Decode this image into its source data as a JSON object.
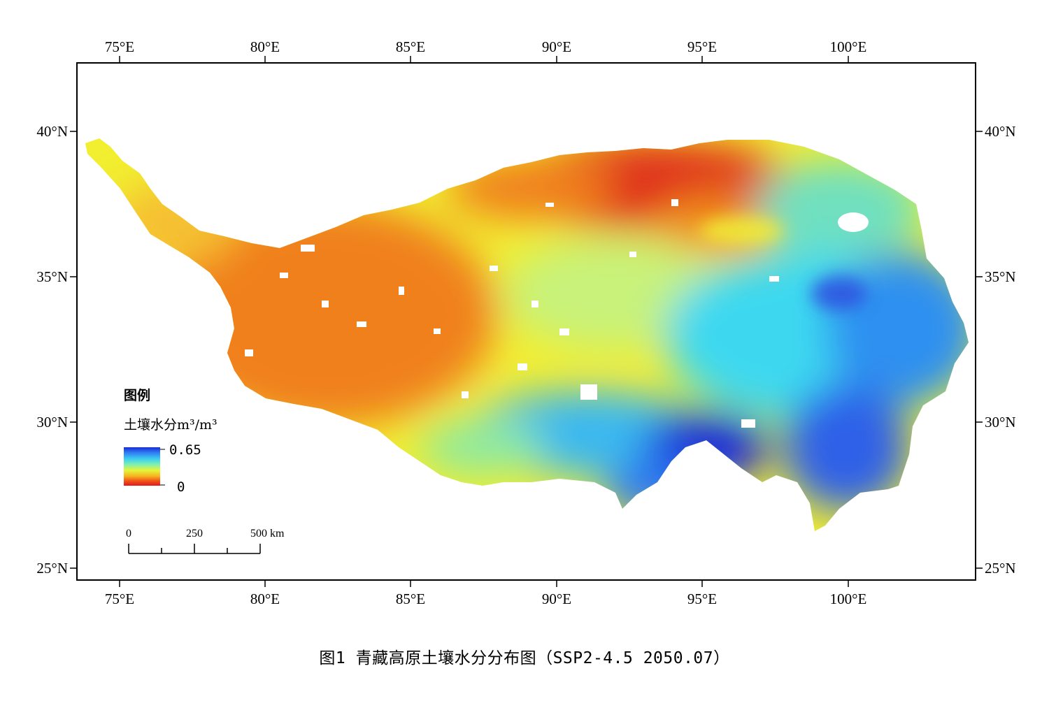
{
  "map": {
    "lon_ticks": [
      "75°E",
      "80°E",
      "85°E",
      "90°E",
      "95°E",
      "100°E"
    ],
    "lat_ticks": [
      "40°N",
      "35°N",
      "30°N",
      "25°N"
    ],
    "legend": {
      "title": "图例",
      "variable_label": "土壤水分m³/m³",
      "max_label": "0.65",
      "min_label": "0",
      "ramp_colors": [
        "#1a2cd6",
        "#2f7cf2",
        "#3ccdf0",
        "#7ff0b0",
        "#e6f53a",
        "#f5b51e",
        "#f0501a",
        "#e01a1a"
      ]
    },
    "scalebar": {
      "labels": [
        "0",
        "250",
        "500 km"
      ]
    },
    "colors": {
      "dry": "#e0301a",
      "orange": "#f0801e",
      "yellow": "#f2ee30",
      "green": "#a8f06a",
      "cyan": "#3cd8f0",
      "blue": "#2f78f0",
      "darkblue": "#1a20d8"
    }
  },
  "caption": "图1 青藏高原土壤水分分布图（SSP2-4.5 2050.07）"
}
